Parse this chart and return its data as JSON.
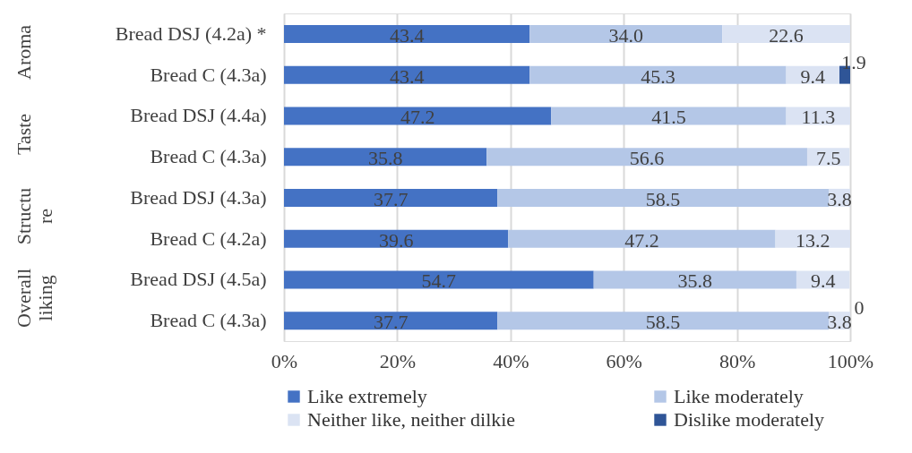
{
  "chart_data": {
    "type": "bar",
    "orientation": "horizontal",
    "stacked": true,
    "categories": [
      "Bread DSJ (4.2a) *",
      "Bread C (4.3a)",
      "Bread DSJ (4.4a)",
      "Bread C (4.3a)",
      "Bread DSJ (4.3a)",
      "Bread C (4.2a)",
      "Bread DSJ (4.5a)",
      "Bread C (4.3a)"
    ],
    "annotations": [
      "Aroma",
      "Taste",
      "Structu re",
      "Overall liking"
    ],
    "series": [
      {
        "name": "Like extremely",
        "color": "#4472c4",
        "values": [
          43.4,
          43.4,
          47.2,
          35.8,
          37.7,
          39.6,
          54.7,
          37.7
        ],
        "value_labels": [
          "43.4",
          "43.4",
          "47.2",
          "35.8",
          "37.7",
          "39.6",
          "54.7",
          "37.7"
        ]
      },
      {
        "name": "Like moderately",
        "color": "#b4c7e7",
        "values": [
          34.0,
          45.3,
          41.5,
          56.6,
          58.5,
          47.2,
          35.8,
          58.5
        ],
        "value_labels": [
          "34.0",
          "45.3",
          "41.5",
          "56.6",
          "58.5",
          "47.2",
          "35.8",
          "58.5"
        ]
      },
      {
        "name": "Neither like, neither dilkie",
        "color": "#dbe3f3",
        "values": [
          22.6,
          9.4,
          11.3,
          7.5,
          3.8,
          13.2,
          9.4,
          3.8
        ],
        "value_labels": [
          "22.6",
          "9.4",
          "11.3",
          "7.5",
          "3.8",
          "13.2",
          "9.4",
          "3.8"
        ]
      },
      {
        "name": "Dislike moderately",
        "color": "#2f5597",
        "values": [
          null,
          1.9,
          null,
          null,
          null,
          null,
          null,
          0
        ],
        "value_labels": [
          null,
          "1.9",
          null,
          null,
          null,
          null,
          null,
          "0"
        ]
      }
    ],
    "xlim": [
      0,
      100
    ],
    "xticks": [
      {
        "value": 0,
        "label": "0%"
      },
      {
        "value": 20,
        "label": "20%"
      },
      {
        "value": 40,
        "label": "40%"
      },
      {
        "value": 60,
        "label": "60%"
      },
      {
        "value": 80,
        "label": "80%"
      },
      {
        "value": 100,
        "label": "100%"
      }
    ],
    "grid": "x",
    "legend": "bottom"
  }
}
